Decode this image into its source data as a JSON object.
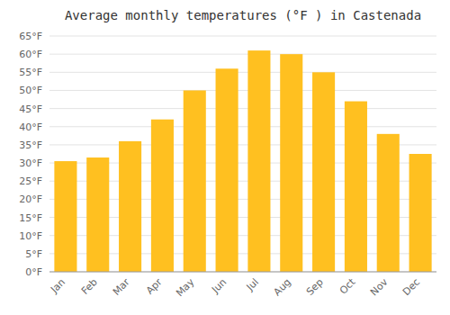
{
  "chart_data": {
    "type": "bar",
    "title": "Average monthly temperatures (°F ) in Castenada",
    "categories": [
      "Jan",
      "Feb",
      "Mar",
      "Apr",
      "May",
      "Jun",
      "Jul",
      "Aug",
      "Sep",
      "Oct",
      "Nov",
      "Dec"
    ],
    "values": [
      30.5,
      31.5,
      36.0,
      42.0,
      50.0,
      56.0,
      61.0,
      60.0,
      55.0,
      47.0,
      38.0,
      32.5
    ],
    "color": "#FFC020",
    "ylim": [
      0,
      65
    ],
    "yticks": [
      {
        "value": 0,
        "label": "0°F"
      },
      {
        "value": 5,
        "label": "5°F"
      },
      {
        "value": 10,
        "label": "10°F"
      },
      {
        "value": 15,
        "label": "15°F"
      },
      {
        "value": 20,
        "label": "20°F"
      },
      {
        "value": 25,
        "label": "25°F"
      },
      {
        "value": 30,
        "label": "30°F"
      },
      {
        "value": 35,
        "label": "35°F"
      },
      {
        "value": 40,
        "label": "40°F"
      },
      {
        "value": 45,
        "label": "45°F"
      },
      {
        "value": 50,
        "label": "50°F"
      },
      {
        "value": 55,
        "label": "55°F"
      },
      {
        "value": 60,
        "label": "60°F"
      },
      {
        "value": 65,
        "label": "65°F"
      }
    ],
    "grid": true
  }
}
